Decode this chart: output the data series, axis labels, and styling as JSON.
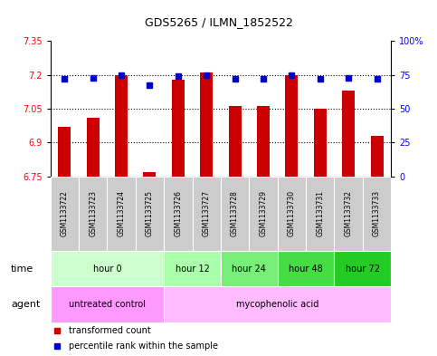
{
  "title": "GDS5265 / ILMN_1852522",
  "samples": [
    "GSM1133722",
    "GSM1133723",
    "GSM1133724",
    "GSM1133725",
    "GSM1133726",
    "GSM1133727",
    "GSM1133728",
    "GSM1133729",
    "GSM1133730",
    "GSM1133731",
    "GSM1133732",
    "GSM1133733"
  ],
  "bar_values": [
    6.97,
    7.01,
    7.2,
    6.77,
    7.18,
    7.21,
    7.06,
    7.06,
    7.2,
    7.05,
    7.13,
    6.93
  ],
  "percentile_values": [
    72,
    73,
    75,
    67,
    74,
    75,
    72,
    72,
    75,
    72,
    73,
    72
  ],
  "bar_bottom": 6.75,
  "ylim": [
    6.75,
    7.35
  ],
  "yticks_left": [
    6.75,
    6.9,
    7.05,
    7.2,
    7.35
  ],
  "yticks_right": [
    0,
    25,
    50,
    75,
    100
  ],
  "bar_color": "#cc0000",
  "dot_color": "#0000cc",
  "time_groups": [
    {
      "label": "hour 0",
      "start": 0,
      "end": 4,
      "color": "#ccffcc"
    },
    {
      "label": "hour 12",
      "start": 4,
      "end": 6,
      "color": "#aaffaa"
    },
    {
      "label": "hour 24",
      "start": 6,
      "end": 8,
      "color": "#77ee77"
    },
    {
      "label": "hour 48",
      "start": 8,
      "end": 10,
      "color": "#44dd44"
    },
    {
      "label": "hour 72",
      "start": 10,
      "end": 12,
      "color": "#22cc22"
    }
  ],
  "agent_groups": [
    {
      "label": "untreated control",
      "start": 0,
      "end": 4,
      "color": "#ff99ff"
    },
    {
      "label": "mycophenolic acid",
      "start": 4,
      "end": 12,
      "color": "#ffbbff"
    }
  ],
  "legend_bar_label": "transformed count",
  "legend_dot_label": "percentile rank within the sample",
  "xlabel_time": "time",
  "xlabel_agent": "agent",
  "bg_color": "#ffffff",
  "plot_bg": "#ffffff",
  "sample_label_bg": "#cccccc",
  "tick_fontsize": 7,
  "bar_width": 0.45
}
